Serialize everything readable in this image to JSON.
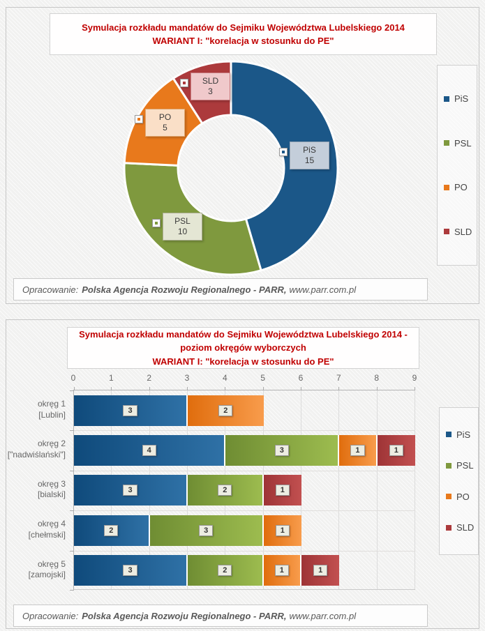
{
  "parties": [
    {
      "name": "PiS",
      "color": "#1B5788",
      "bar_start": "#0F4A7B",
      "bar_end": "#2F71A6",
      "label_bg": "#C4CEDA",
      "label_border": "#97A5B5"
    },
    {
      "name": "PSL",
      "color": "#7F993E",
      "bar_start": "#6F8D33",
      "bar_end": "#9DBC4F",
      "label_bg": "#E4E6D4",
      "label_border": "#ABAE92"
    },
    {
      "name": "PO",
      "color": "#E8791C",
      "bar_start": "#E06D0D",
      "bar_end": "#F89C4C",
      "label_bg": "#FADFC7",
      "label_border": "#DFA772"
    },
    {
      "name": "SLD",
      "color": "#AC3A3C",
      "bar_start": "#9E3436",
      "bar_end": "#C25050",
      "label_bg": "#F0C9CB",
      "label_border": "#C87A7E"
    }
  ],
  "footer": {
    "prefix": "Opracowanie:",
    "org": "Polska Agencja Rozwoju Regionalnego - PARR,",
    "url": "www.parr.com.pl"
  },
  "chart_data": [
    {
      "type": "pie",
      "subtype": "donut",
      "title": "Symulacja rozkładu mandatów do Sejmiku Województwa Lubelskiego 2014\nWARIANT I: \"korelacja w stosunku do PE\"",
      "labels": [
        "PiS",
        "PSL",
        "PO",
        "SLD"
      ],
      "values": [
        15,
        10,
        5,
        3
      ],
      "colors": [
        "#1B5788",
        "#7F993E",
        "#E8791C",
        "#AC3A3C"
      ],
      "start_angle_deg": 0,
      "direction": "clockwise",
      "legend": [
        "PiS",
        "PSL",
        "PO",
        "SLD"
      ],
      "legend_position": "right"
    },
    {
      "type": "bar",
      "orientation": "horizontal",
      "stacked": true,
      "title": "Symulacja rozkładu mandatów do Sejmiku Województwa Lubelskiego 2014 -\npoziom okręgów wyborczych\nWARIANT I: \"korelacja w stosunku do PE\"",
      "categories": [
        {
          "name": "okręg 1",
          "sub": "[Lublin]"
        },
        {
          "name": "okręg 2",
          "sub": "[\"nadwiślański\"]"
        },
        {
          "name": "okręg 3",
          "sub": "[bialski]"
        },
        {
          "name": "okręg 4",
          "sub": "[chełmski]"
        },
        {
          "name": "okręg 5",
          "sub": "[zamojski]"
        }
      ],
      "series": [
        {
          "name": "PiS",
          "values": [
            3,
            4,
            3,
            2,
            3
          ]
        },
        {
          "name": "PSL",
          "values": [
            0,
            3,
            2,
            3,
            2
          ]
        },
        {
          "name": "PO",
          "values": [
            2,
            1,
            0,
            1,
            1
          ]
        },
        {
          "name": "SLD",
          "values": [
            0,
            1,
            1,
            0,
            1
          ]
        }
      ],
      "x_ticks": [
        0,
        1,
        2,
        3,
        4,
        5,
        6,
        7,
        8,
        9
      ],
      "xlim": [
        0,
        9
      ],
      "grid": true,
      "legend": [
        "PiS",
        "PSL",
        "PO",
        "SLD"
      ],
      "legend_position": "right"
    }
  ]
}
